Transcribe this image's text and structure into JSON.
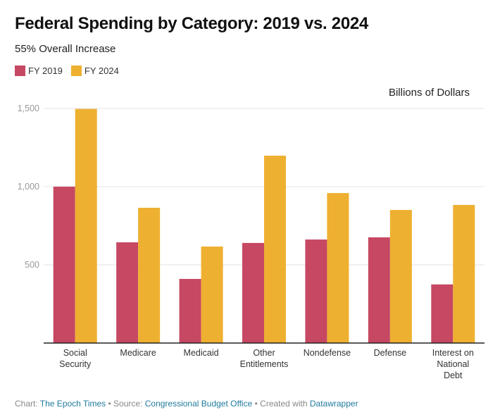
{
  "title": "Federal Spending by Category: 2019 vs. 2024",
  "subtitle": "55% Overall Increase",
  "unit_label": "Billions of Dollars",
  "colors": {
    "fy2019": "#c64863",
    "fy2024": "#eeb030",
    "grid": "#e3e3e3",
    "axis": "#222222"
  },
  "footer": {
    "chart_prefix": "Chart: ",
    "chart_source": "The Epoch Times",
    "source_prefix": " • Source: ",
    "source": "Congressional Budget Office",
    "created_prefix": " • Created with ",
    "created_with": "Datawrapper"
  },
  "chart_data": {
    "type": "bar",
    "title": "Federal Spending by Category: 2019 vs. 2024",
    "subtitle": "55% Overall Increase",
    "ylabel": "Billions of Dollars",
    "xlabel": "",
    "ylim": [
      0,
      1500
    ],
    "yticks": [
      500,
      1000,
      1500
    ],
    "ytick_labels": [
      "500",
      "1,000",
      "1,500"
    ],
    "grid": true,
    "legend_position": "top-left",
    "categories": [
      [
        "Social",
        "Security"
      ],
      [
        "Medicare"
      ],
      [
        "Medicaid"
      ],
      [
        "Other",
        "Entitlements"
      ],
      [
        "Nondefense"
      ],
      [
        "Defense"
      ],
      [
        "Interest on",
        "National",
        "Debt"
      ]
    ],
    "series": [
      {
        "name": "FY 2019",
        "color": "#c64863",
        "values": [
          1000,
          644,
          410,
          640,
          662,
          676,
          375
        ]
      },
      {
        "name": "FY 2024",
        "color": "#eeb030",
        "values": [
          1497,
          865,
          617,
          1198,
          959,
          851,
          883
        ]
      }
    ]
  }
}
